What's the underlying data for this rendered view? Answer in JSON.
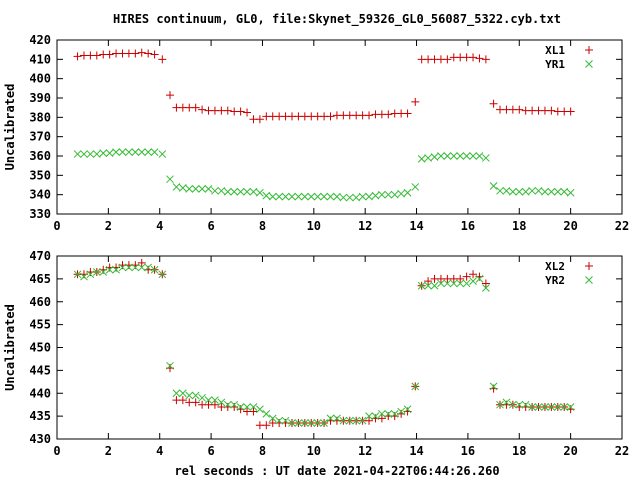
{
  "title": "HIRES continuum, GL0, file:Skynet_59326_GL0_56087_5322.cyb.txt",
  "colors": {
    "series_plus": "#cc0000",
    "series_cross": "#33bb33",
    "frame": "#000000"
  },
  "chart_data": [
    {
      "type": "scatter",
      "ylabel": "Uncalibrated",
      "xlabel": "",
      "xlim": [
        0,
        22
      ],
      "ylim": [
        330,
        420
      ],
      "xticks": [
        0,
        2,
        4,
        6,
        8,
        10,
        12,
        14,
        16,
        18,
        20,
        22
      ],
      "yticks": [
        330,
        340,
        350,
        360,
        370,
        380,
        390,
        400,
        410,
        420
      ],
      "grid": false,
      "legend": "top-right",
      "x": [
        0.8,
        1.05,
        1.3,
        1.55,
        1.8,
        2.05,
        2.3,
        2.55,
        2.8,
        3.05,
        3.3,
        3.55,
        3.8,
        4.1,
        4.4,
        4.65,
        4.9,
        5.15,
        5.4,
        5.65,
        5.9,
        6.15,
        6.4,
        6.65,
        6.9,
        7.15,
        7.4,
        7.65,
        7.9,
        8.15,
        8.4,
        8.65,
        8.9,
        9.15,
        9.4,
        9.65,
        9.9,
        10.15,
        10.4,
        10.65,
        10.9,
        11.15,
        11.4,
        11.65,
        11.9,
        12.15,
        12.4,
        12.65,
        12.9,
        13.15,
        13.4,
        13.65,
        13.95,
        14.2,
        14.45,
        14.7,
        14.95,
        15.2,
        15.45,
        15.7,
        15.95,
        16.2,
        16.45,
        16.7,
        17.0,
        17.25,
        17.5,
        17.75,
        18.0,
        18.25,
        18.5,
        18.75,
        19.0,
        19.25,
        19.5,
        19.75,
        20.0
      ],
      "series": [
        {
          "name": "XL1",
          "marker": "plus",
          "values": [
            411.5,
            412,
            412,
            412,
            412.5,
            412.5,
            413,
            413,
            413,
            413,
            413.5,
            413,
            412.5,
            410,
            391.5,
            385,
            385,
            385,
            385,
            384,
            383.5,
            383.5,
            383.5,
            383.5,
            383,
            383,
            382.5,
            379,
            379,
            380.5,
            380.5,
            380.5,
            380.5,
            380.5,
            380.5,
            380.5,
            380.5,
            380.5,
            380.5,
            380.5,
            381,
            381,
            381,
            381,
            381,
            381,
            381.5,
            381.5,
            381.5,
            382,
            382,
            382,
            388,
            410,
            410,
            410,
            410,
            410,
            411,
            411,
            411,
            411,
            410.5,
            410,
            387,
            384,
            384,
            384,
            384,
            383.5,
            383.5,
            383.5,
            383.5,
            383.5,
            383,
            383,
            383
          ]
        },
        {
          "name": "YR1",
          "marker": "cross",
          "values": [
            361,
            361,
            361,
            361,
            361.5,
            361.5,
            362,
            362,
            362,
            362,
            362,
            362,
            362,
            361,
            348,
            344,
            343.5,
            343,
            343,
            343,
            343,
            342,
            342,
            341.5,
            341.5,
            341.5,
            341.5,
            341.5,
            341,
            339.5,
            339,
            339,
            339,
            339,
            339,
            339,
            339,
            339,
            339,
            339,
            339,
            338.5,
            338.5,
            338.5,
            339,
            339,
            339.5,
            340,
            340,
            340,
            340.5,
            341,
            344,
            358.5,
            359,
            359.5,
            360,
            360,
            360,
            360,
            360,
            360,
            360,
            359,
            344.5,
            342,
            342,
            341.5,
            341.5,
            341.5,
            342,
            342,
            341.5,
            341.5,
            341.5,
            341.5,
            341
          ]
        }
      ]
    },
    {
      "type": "scatter",
      "ylabel": "Uncalibrated",
      "xlabel": "rel seconds : UT date 2021-04-22T06:44:26.260",
      "xlim": [
        0,
        22
      ],
      "ylim": [
        430,
        470
      ],
      "xticks": [
        0,
        2,
        4,
        6,
        8,
        10,
        12,
        14,
        16,
        18,
        20,
        22
      ],
      "yticks": [
        430,
        435,
        440,
        445,
        450,
        455,
        460,
        465,
        470
      ],
      "grid": false,
      "legend": "top-right",
      "x": [
        0.8,
        1.05,
        1.3,
        1.55,
        1.8,
        2.05,
        2.3,
        2.55,
        2.8,
        3.05,
        3.3,
        3.55,
        3.8,
        4.1,
        4.4,
        4.65,
        4.9,
        5.15,
        5.4,
        5.65,
        5.9,
        6.15,
        6.4,
        6.65,
        6.9,
        7.15,
        7.4,
        7.65,
        7.9,
        8.15,
        8.4,
        8.65,
        8.9,
        9.15,
        9.4,
        9.65,
        9.9,
        10.15,
        10.4,
        10.65,
        10.9,
        11.15,
        11.4,
        11.65,
        11.9,
        12.15,
        12.4,
        12.65,
        12.9,
        13.15,
        13.4,
        13.65,
        13.95,
        14.2,
        14.45,
        14.7,
        14.95,
        15.2,
        15.45,
        15.7,
        15.95,
        16.2,
        16.45,
        16.7,
        17.0,
        17.25,
        17.5,
        17.75,
        18.0,
        18.25,
        18.5,
        18.75,
        19.0,
        19.25,
        19.5,
        19.75,
        20.0
      ],
      "series": [
        {
          "name": "XL2",
          "marker": "plus",
          "values": [
            466,
            466,
            466.5,
            466.5,
            467,
            467.5,
            467.5,
            468,
            468,
            468,
            468.5,
            467,
            467,
            466,
            445.5,
            438.5,
            438.5,
            438,
            438,
            437.5,
            437.5,
            437.5,
            437,
            437,
            437,
            436.5,
            436,
            436,
            433,
            433,
            433.5,
            433.5,
            433.5,
            433.5,
            433.5,
            433.5,
            433.5,
            433.5,
            433.5,
            434,
            434,
            434,
            434,
            434,
            434,
            434,
            434.5,
            434.5,
            435,
            435,
            435.5,
            436,
            441.5,
            463.5,
            464.5,
            465,
            465,
            465,
            465,
            465,
            465.5,
            466,
            465.5,
            464,
            441,
            437.5,
            437.5,
            437.5,
            437,
            437,
            437,
            437,
            437,
            437,
            437,
            437,
            436.5
          ]
        },
        {
          "name": "YR2",
          "marker": "cross",
          "values": [
            466,
            465.5,
            466,
            466.5,
            466.5,
            467,
            467,
            467.5,
            467.5,
            467.5,
            467.5,
            467.5,
            467,
            466,
            446,
            440,
            440,
            439.5,
            439.5,
            439,
            438.5,
            438.5,
            438,
            437.5,
            437.5,
            437,
            437,
            437,
            436.5,
            435.5,
            434.5,
            434,
            434,
            433.5,
            433.5,
            433.5,
            433.5,
            433.5,
            433.5,
            434.5,
            434.5,
            434,
            434,
            434,
            434,
            435,
            435,
            435.5,
            435.5,
            435.5,
            436,
            436.5,
            441.5,
            463.5,
            463.5,
            463.5,
            464,
            464,
            464,
            464,
            464,
            464.5,
            465,
            463,
            441.5,
            437.5,
            438,
            437.5,
            437.5,
            437.5,
            437,
            437,
            437,
            437,
            437,
            437,
            437
          ]
        }
      ]
    }
  ]
}
